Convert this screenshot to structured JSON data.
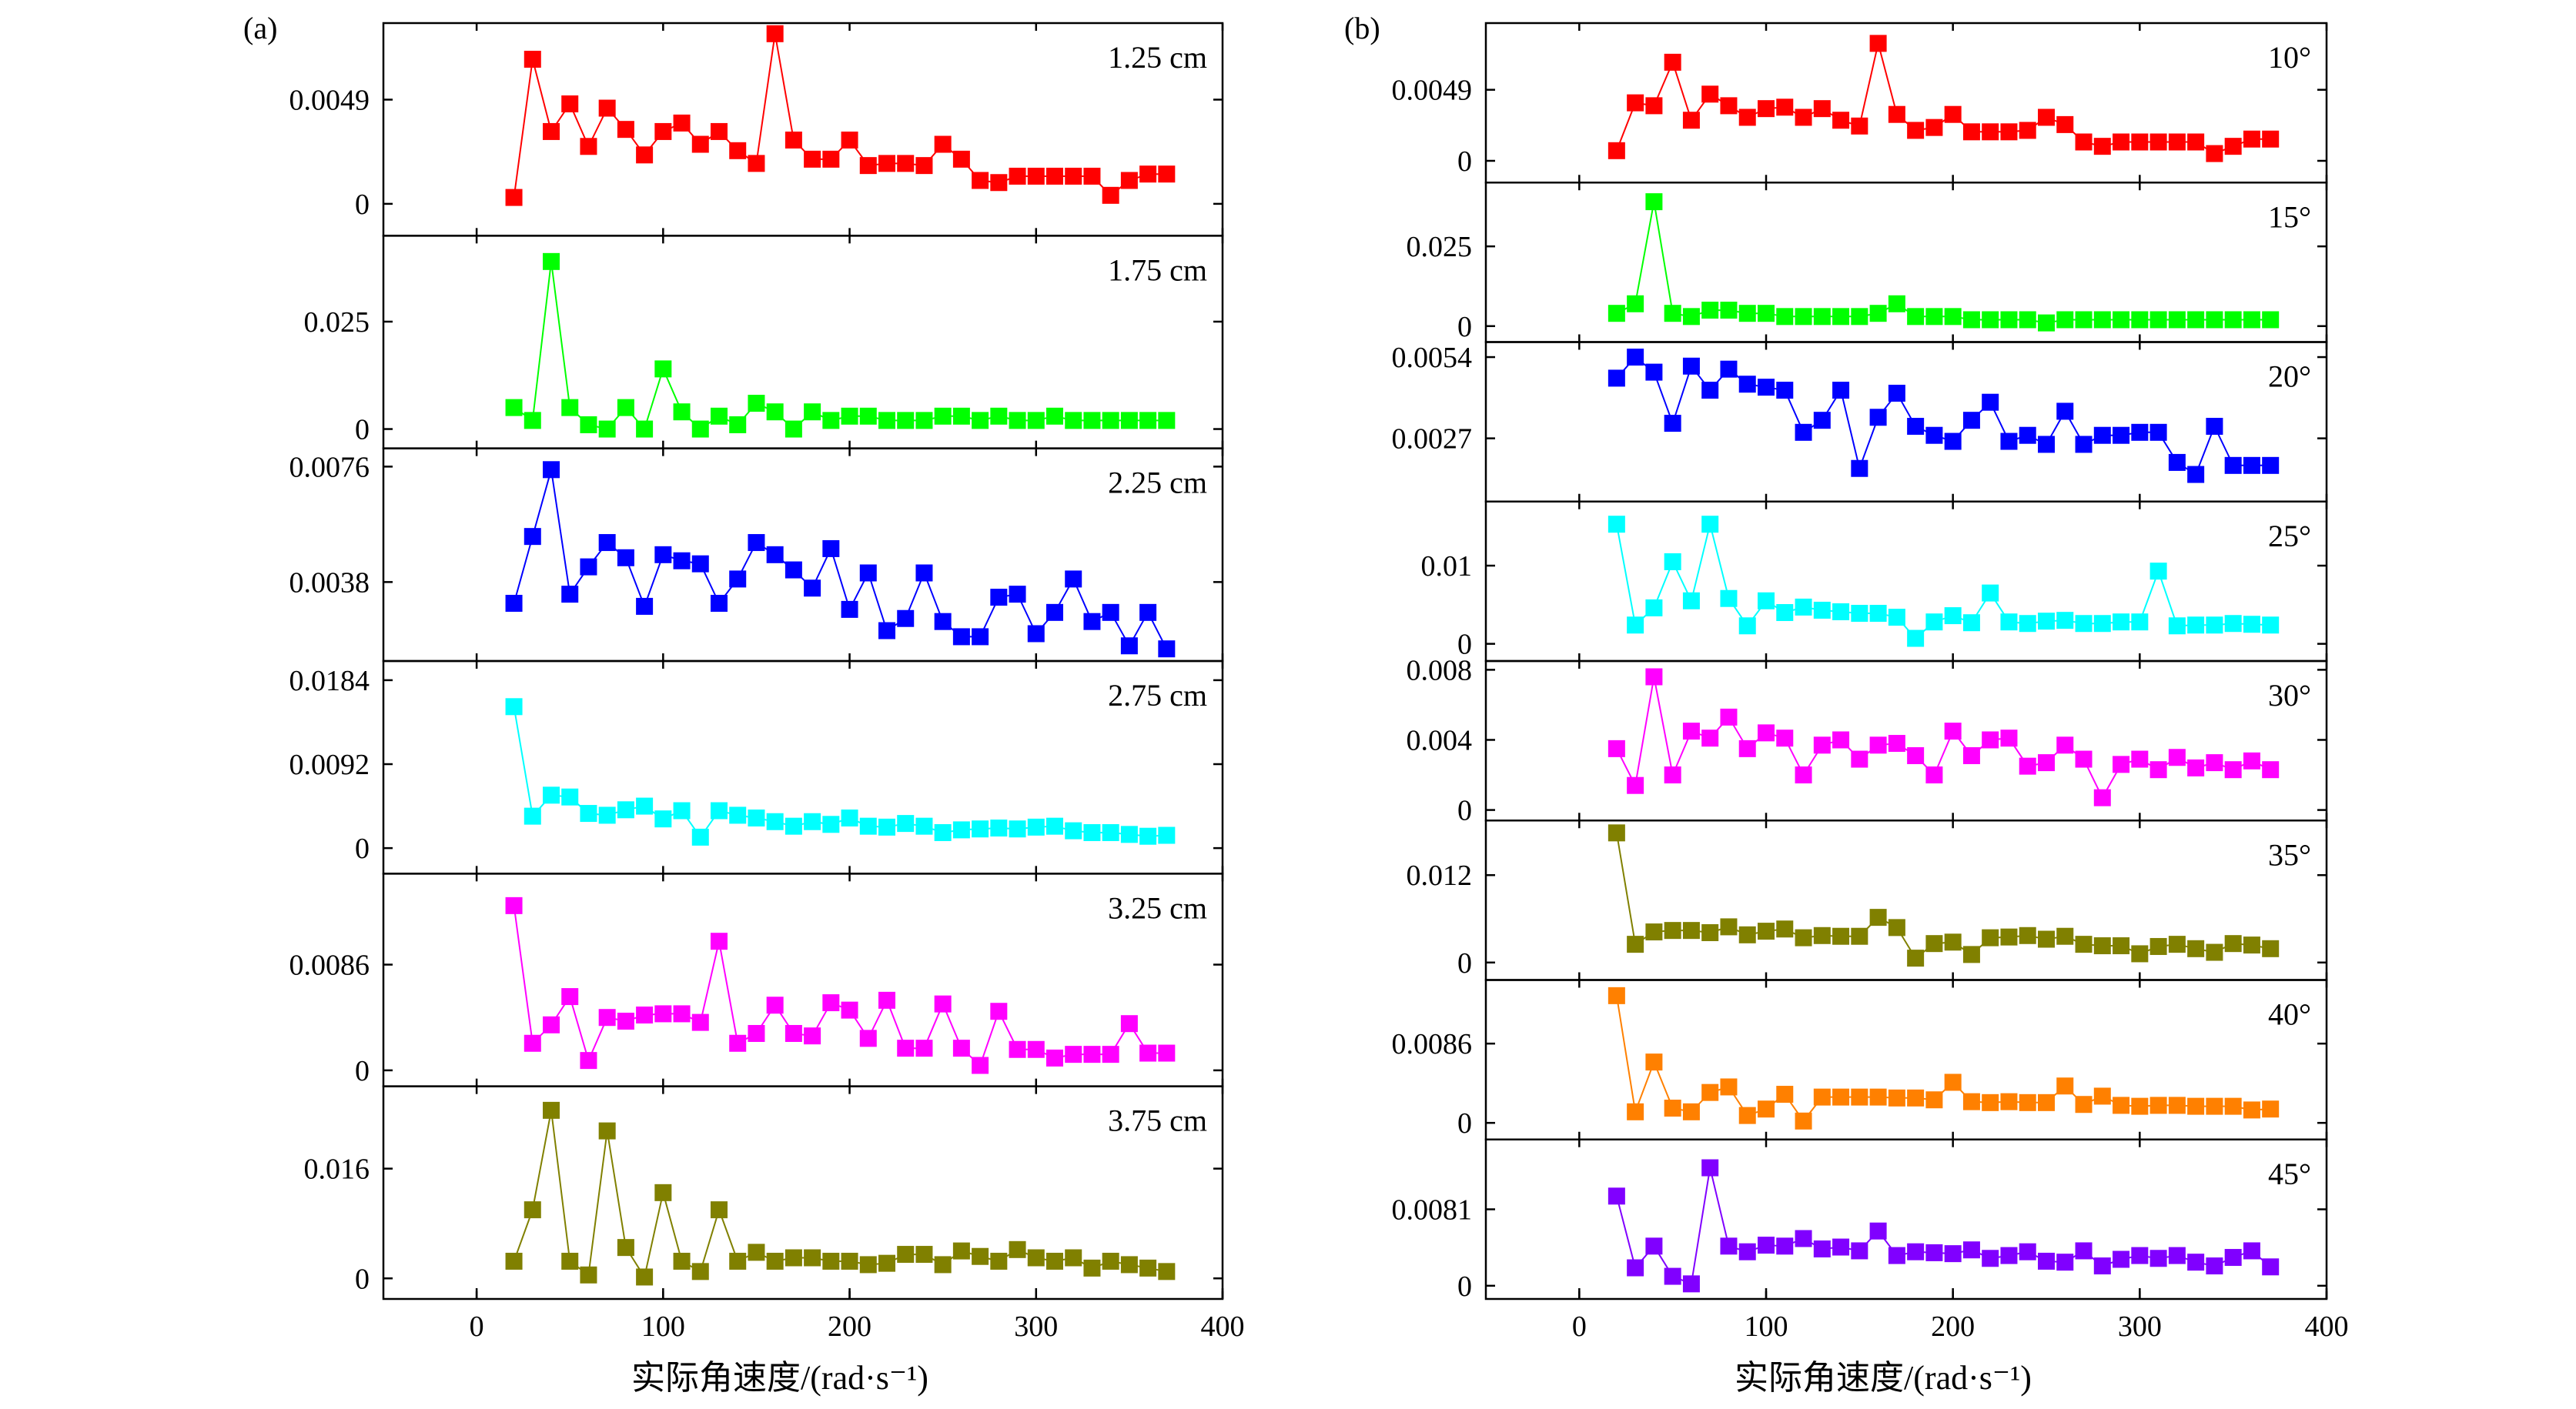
{
  "chart_data": [
    {
      "id": "a",
      "type": "line",
      "panel_label": "(a)",
      "xlabel": "实际角速度/(rad·s⁻¹)",
      "xlim": [
        -50,
        400
      ],
      "xticks": [
        0,
        100,
        200,
        300,
        400
      ],
      "x": [
        20,
        30,
        40,
        50,
        60,
        70,
        80,
        90,
        100,
        110,
        120,
        130,
        140,
        150,
        160,
        170,
        180,
        190,
        200,
        210,
        220,
        230,
        240,
        250,
        260,
        270,
        280,
        290,
        300,
        310,
        320,
        330,
        340,
        350,
        360,
        370
      ],
      "series": [
        {
          "name": "1.25 cm",
          "color": "#ff0000",
          "ylim": [
            -0.0015,
            0.0085
          ],
          "yticks": [
            0,
            0.0049
          ],
          "ytick_labels": [
            "0",
            "0.0049"
          ],
          "values": [
            0.0003,
            0.0068,
            0.0034,
            0.0047,
            0.0027,
            0.0045,
            0.0035,
            0.0023,
            0.0034,
            0.0038,
            0.0028,
            0.0034,
            0.0025,
            0.0019,
            0.008,
            0.003,
            0.0021,
            0.0021,
            0.003,
            0.0018,
            0.0019,
            0.0019,
            0.0018,
            0.0028,
            0.0021,
            0.0011,
            0.001,
            0.0013,
            0.0013,
            0.0013,
            0.0013,
            0.0013,
            0.0004,
            0.0011,
            0.0014,
            0.0014
          ]
        },
        {
          "name": "1.75 cm",
          "color": "#00ff00",
          "ylim": [
            -0.0045,
            0.045
          ],
          "yticks": [
            0,
            0.025
          ],
          "ytick_labels": [
            "0",
            "0.025"
          ],
          "values": [
            0.005,
            0.002,
            0.039,
            0.005,
            0.001,
            0.0,
            0.005,
            0.0,
            0.014,
            0.004,
            0.0,
            0.003,
            0.001,
            0.006,
            0.004,
            0.0,
            0.004,
            0.002,
            0.003,
            0.003,
            0.002,
            0.002,
            0.002,
            0.003,
            0.003,
            0.002,
            0.003,
            0.002,
            0.002,
            0.003,
            0.002,
            0.002,
            0.002,
            0.002,
            0.002,
            0.002
          ]
        },
        {
          "name": "2.25 cm",
          "color": "#0000ff",
          "ylim": [
            0.0012,
            0.0082
          ],
          "yticks": [
            0.0038,
            0.0076
          ],
          "ytick_labels": [
            "0.0038",
            "0.0076"
          ],
          "values": [
            0.0031,
            0.0053,
            0.0075,
            0.0034,
            0.0043,
            0.0051,
            0.0046,
            0.003,
            0.0047,
            0.0045,
            0.0044,
            0.0031,
            0.0039,
            0.0051,
            0.0047,
            0.0042,
            0.0036,
            0.0049,
            0.0029,
            0.0041,
            0.0022,
            0.0026,
            0.0041,
            0.0025,
            0.002,
            0.002,
            0.0033,
            0.0034,
            0.0021,
            0.0028,
            0.0039,
            0.0025,
            0.0028,
            0.0017,
            0.0028,
            0.0016
          ]
        },
        {
          "name": "2.75 cm",
          "color": "#00ffff",
          "ylim": [
            -0.0028,
            0.0205
          ],
          "yticks": [
            0,
            0.0092,
            0.0184
          ],
          "ytick_labels": [
            "0",
            "0.0092",
            "0.0184"
          ],
          "values": [
            0.0155,
            0.0035,
            0.0058,
            0.0056,
            0.0038,
            0.0036,
            0.0042,
            0.0046,
            0.0032,
            0.0041,
            0.0012,
            0.0041,
            0.0036,
            0.0033,
            0.0029,
            0.0024,
            0.0029,
            0.0026,
            0.0033,
            0.0024,
            0.0023,
            0.0027,
            0.0024,
            0.0017,
            0.002,
            0.0021,
            0.0022,
            0.0021,
            0.0023,
            0.0024,
            0.0019,
            0.0017,
            0.0017,
            0.0015,
            0.0013,
            0.0014
          ]
        },
        {
          "name": "3.25 cm",
          "color": "#ff00ff",
          "ylim": [
            -0.0013,
            0.016
          ],
          "yticks": [
            0,
            0.0086
          ],
          "ytick_labels": [
            "0",
            "0.0086"
          ],
          "values": [
            0.0134,
            0.0022,
            0.0037,
            0.006,
            0.0008,
            0.0043,
            0.004,
            0.0045,
            0.0046,
            0.0046,
            0.0039,
            0.0105,
            0.0022,
            0.003,
            0.0053,
            0.003,
            0.0028,
            0.0055,
            0.0049,
            0.0026,
            0.0057,
            0.0018,
            0.0018,
            0.0054,
            0.0018,
            0.0004,
            0.0048,
            0.0017,
            0.0017,
            0.001,
            0.0013,
            0.0013,
            0.0013,
            0.0038,
            0.0014,
            0.0014
          ]
        },
        {
          "name": "3.75 cm",
          "color": "#808000",
          "ylim": [
            -0.003,
            0.028
          ],
          "yticks": [
            0,
            0.016
          ],
          "ytick_labels": [
            "0",
            "0.016"
          ],
          "values": [
            0.0025,
            0.01,
            0.0245,
            0.0025,
            0.0005,
            0.0215,
            0.0045,
            0.0002,
            0.0125,
            0.0025,
            0.001,
            0.01,
            0.0025,
            0.0038,
            0.0025,
            0.003,
            0.003,
            0.0025,
            0.0025,
            0.002,
            0.0022,
            0.0035,
            0.0035,
            0.002,
            0.004,
            0.0032,
            0.0025,
            0.0042,
            0.003,
            0.0025,
            0.003,
            0.0015,
            0.0025,
            0.002,
            0.0015,
            0.001
          ]
        }
      ]
    },
    {
      "id": "b",
      "type": "line",
      "panel_label": "(b)",
      "xlabel": "实际角速度/(rad·s⁻¹)",
      "xlim": [
        -50,
        400
      ],
      "xticks": [
        0,
        100,
        200,
        300,
        400
      ],
      "x": [
        20,
        30,
        40,
        50,
        60,
        70,
        80,
        90,
        100,
        110,
        120,
        130,
        140,
        150,
        160,
        170,
        180,
        190,
        200,
        210,
        220,
        230,
        240,
        250,
        260,
        270,
        280,
        290,
        300,
        310,
        320,
        330,
        340,
        350,
        360,
        370
      ],
      "series": [
        {
          "name": "10°",
          "color": "#ff0000",
          "ylim": [
            -0.0015,
            0.0095
          ],
          "yticks": [
            0,
            0.0049
          ],
          "ytick_labels": [
            "0",
            "0.0049"
          ],
          "values": [
            0.0007,
            0.004,
            0.0038,
            0.0068,
            0.0028,
            0.0046,
            0.0038,
            0.003,
            0.0036,
            0.0037,
            0.003,
            0.0036,
            0.0028,
            0.0024,
            0.0081,
            0.0032,
            0.0021,
            0.0023,
            0.0032,
            0.002,
            0.002,
            0.002,
            0.0021,
            0.003,
            0.0025,
            0.0013,
            0.001,
            0.0013,
            0.0013,
            0.0013,
            0.0013,
            0.0013,
            0.0005,
            0.001,
            0.0015,
            0.0015
          ]
        },
        {
          "name": "15°",
          "color": "#00ff00",
          "ylim": [
            -0.005,
            0.045
          ],
          "yticks": [
            0,
            0.025
          ],
          "ytick_labels": [
            "0",
            "0.025"
          ],
          "values": [
            0.004,
            0.007,
            0.039,
            0.004,
            0.003,
            0.005,
            0.005,
            0.004,
            0.004,
            0.003,
            0.003,
            0.003,
            0.003,
            0.003,
            0.004,
            0.007,
            0.003,
            0.003,
            0.003,
            0.002,
            0.002,
            0.002,
            0.002,
            0.001,
            0.002,
            0.002,
            0.002,
            0.002,
            0.002,
            0.002,
            0.002,
            0.002,
            0.002,
            0.002,
            0.002,
            0.002
          ]
        },
        {
          "name": "20°",
          "color": "#0000ff",
          "ylim": [
            0.0006,
            0.0059
          ],
          "yticks": [
            0.0027,
            0.0054
          ],
          "ytick_labels": [
            "0.0027",
            "0.0054"
          ],
          "values": [
            0.0047,
            0.0054,
            0.0049,
            0.0032,
            0.0051,
            0.0043,
            0.005,
            0.0045,
            0.0044,
            0.0043,
            0.0029,
            0.0033,
            0.0043,
            0.0017,
            0.0034,
            0.0042,
            0.0031,
            0.0028,
            0.0026,
            0.0033,
            0.0039,
            0.0026,
            0.0028,
            0.0025,
            0.0036,
            0.0025,
            0.0028,
            0.0028,
            0.0029,
            0.0029,
            0.0019,
            0.0015,
            0.0031,
            0.0018,
            0.0018,
            0.0018
          ]
        },
        {
          "name": "25°",
          "color": "#00ffff",
          "ylim": [
            -0.0022,
            0.0182
          ],
          "yticks": [
            0,
            0.01
          ],
          "ytick_labels": [
            "0",
            "0.01"
          ],
          "values": [
            0.0153,
            0.0024,
            0.0046,
            0.0105,
            0.0055,
            0.0153,
            0.0058,
            0.0023,
            0.0055,
            0.004,
            0.0047,
            0.0043,
            0.0041,
            0.0039,
            0.0039,
            0.0034,
            0.0007,
            0.0028,
            0.0036,
            0.0027,
            0.0065,
            0.0028,
            0.0026,
            0.0029,
            0.003,
            0.0026,
            0.0026,
            0.0028,
            0.0028,
            0.0093,
            0.0023,
            0.0024,
            0.0024,
            0.0026,
            0.0025,
            0.0024
          ]
        },
        {
          "name": "30°",
          "color": "#ff00ff",
          "ylim": [
            -0.0006,
            0.0085
          ],
          "yticks": [
            0,
            0.004,
            0.008
          ],
          "ytick_labels": [
            "0",
            "0.004",
            "0.008"
          ],
          "values": [
            0.0035,
            0.0014,
            0.0076,
            0.002,
            0.0045,
            0.0041,
            0.0053,
            0.0035,
            0.0044,
            0.0041,
            0.002,
            0.0037,
            0.004,
            0.0029,
            0.0037,
            0.0038,
            0.0031,
            0.002,
            0.0045,
            0.0031,
            0.004,
            0.0041,
            0.0025,
            0.0027,
            0.0037,
            0.0029,
            0.0007,
            0.0026,
            0.0029,
            0.0023,
            0.003,
            0.0024,
            0.0027,
            0.0023,
            0.0028,
            0.0023
          ]
        },
        {
          "name": "35°",
          "color": "#808000",
          "ylim": [
            -0.0024,
            0.0195
          ],
          "yticks": [
            0,
            0.012
          ],
          "ytick_labels": [
            "0",
            "0.012"
          ],
          "values": [
            0.0178,
            0.0025,
            0.0042,
            0.0044,
            0.0044,
            0.0041,
            0.0049,
            0.0038,
            0.0043,
            0.0046,
            0.0034,
            0.0037,
            0.0036,
            0.0036,
            0.0062,
            0.0048,
            0.0006,
            0.0026,
            0.0028,
            0.0011,
            0.0034,
            0.0035,
            0.0037,
            0.0032,
            0.0036,
            0.0025,
            0.0023,
            0.0023,
            0.0012,
            0.0022,
            0.0025,
            0.0019,
            0.0014,
            0.0026,
            0.0024,
            0.0019
          ]
        },
        {
          "name": "40°",
          "color": "#ff8000",
          "ylim": [
            -0.0018,
            0.0155
          ],
          "yticks": [
            0,
            0.0086
          ],
          "ytick_labels": [
            "0",
            "0.0086"
          ],
          "values": [
            0.0138,
            0.0012,
            0.0066,
            0.0016,
            0.0012,
            0.0033,
            0.0039,
            0.0008,
            0.0015,
            0.0031,
            0.0002,
            0.0028,
            0.0028,
            0.0028,
            0.0028,
            0.0027,
            0.0027,
            0.0025,
            0.0044,
            0.0023,
            0.0022,
            0.0023,
            0.0022,
            0.0022,
            0.004,
            0.002,
            0.0029,
            0.0019,
            0.0018,
            0.0019,
            0.0019,
            0.0018,
            0.0018,
            0.0018,
            0.0014,
            0.0015
          ]
        },
        {
          "name": "45°",
          "color": "#8000ff",
          "ylim": [
            -0.0014,
            0.0155
          ],
          "yticks": [
            0,
            0.0081
          ],
          "ytick_labels": [
            "0",
            "0.0081"
          ],
          "values": [
            0.0095,
            0.0019,
            0.0042,
            0.001,
            0.0002,
            0.0125,
            0.0042,
            0.0036,
            0.0043,
            0.0042,
            0.005,
            0.0039,
            0.0041,
            0.0037,
            0.0058,
            0.0032,
            0.0036,
            0.0035,
            0.0034,
            0.0038,
            0.0029,
            0.0032,
            0.0036,
            0.0026,
            0.0025,
            0.0037,
            0.0021,
            0.0028,
            0.0032,
            0.0029,
            0.0032,
            0.0025,
            0.0021,
            0.003,
            0.0037,
            0.002
          ]
        }
      ]
    }
  ]
}
